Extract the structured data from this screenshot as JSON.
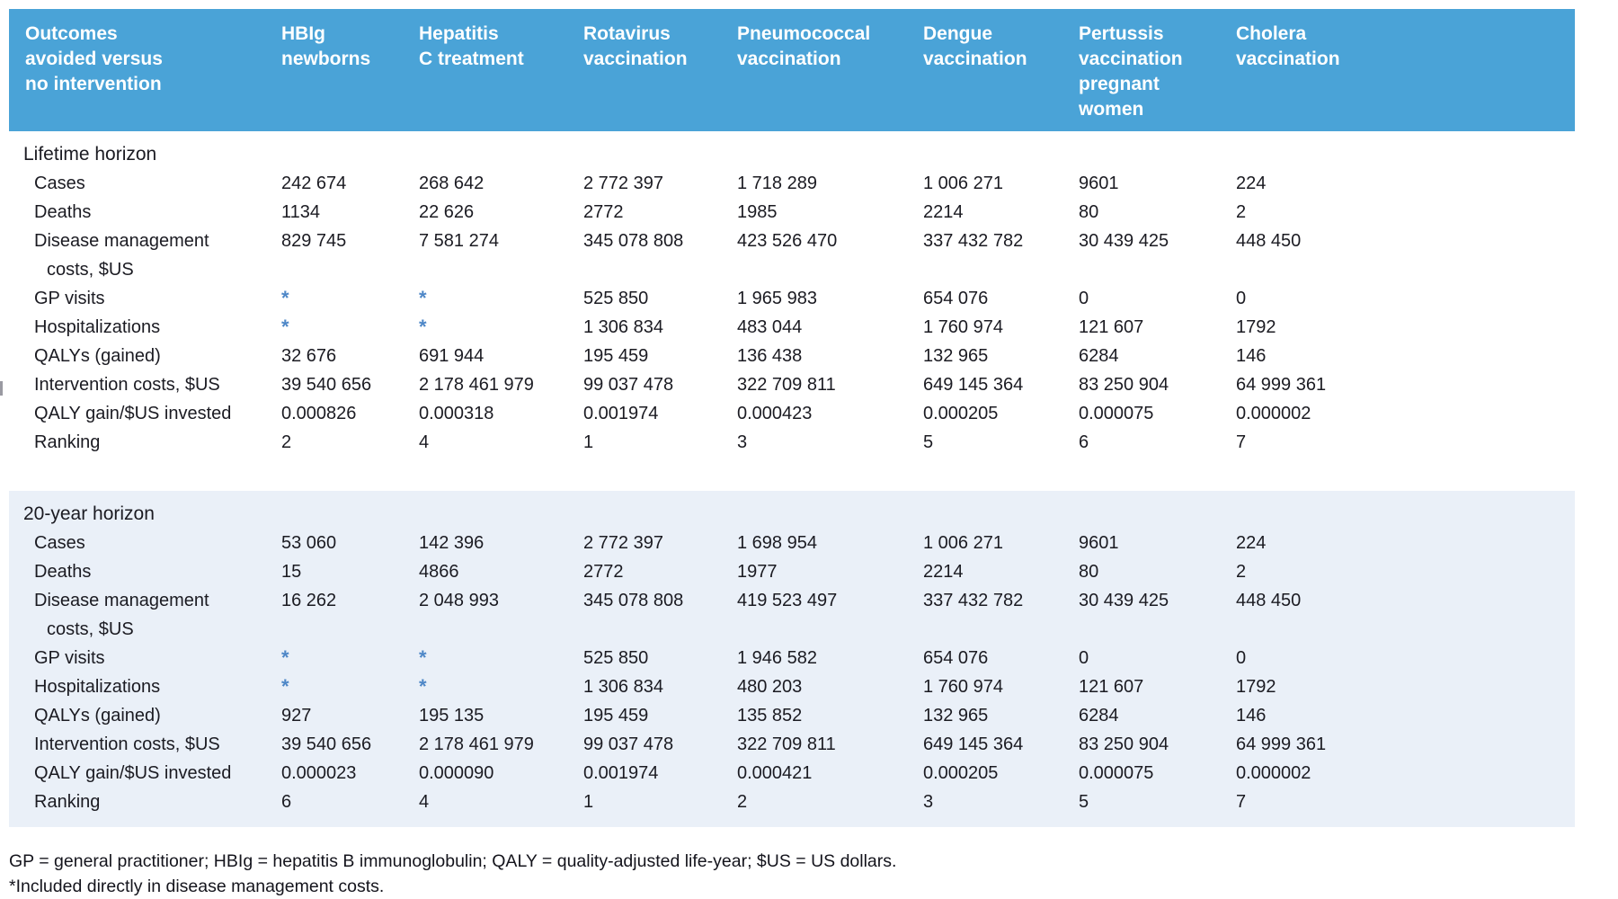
{
  "table": {
    "header": {
      "row_label_lines": [
        "Outcomes",
        "avoided versus",
        "no intervention"
      ],
      "columns": [
        {
          "name": "hbig-newborns",
          "lines": [
            "HBIg",
            "newborns"
          ]
        },
        {
          "name": "hepatitis-c-treatment",
          "lines": [
            "Hepatitis",
            "C treatment"
          ]
        },
        {
          "name": "rotavirus-vaccination",
          "lines": [
            "Rotavirus",
            "vaccination"
          ]
        },
        {
          "name": "pneumococcal-vaccination",
          "lines": [
            "Pneumococcal",
            "vaccination"
          ]
        },
        {
          "name": "dengue-vaccination",
          "lines": [
            "Dengue",
            "vaccination"
          ]
        },
        {
          "name": "pertussis-vaccination-pregnant-women",
          "lines": [
            "Pertussis",
            "vaccination",
            "pregnant",
            "women"
          ]
        },
        {
          "name": "cholera-vaccination",
          "lines": [
            "Cholera",
            "vaccination"
          ]
        }
      ]
    },
    "sections": [
      {
        "title": "Lifetime horizon",
        "style": "plain",
        "rows": [
          {
            "label_lines": [
              "Cases"
            ],
            "values": [
              "242 674",
              "268 642",
              "2 772 397",
              "1 718 289",
              "1 006 271",
              "9601",
              "224"
            ]
          },
          {
            "label_lines": [
              "Deaths"
            ],
            "values": [
              "1134",
              "22 626",
              "2772",
              "1985",
              "2214",
              "80",
              "2"
            ]
          },
          {
            "label_lines": [
              "Disease management",
              "costs, $US"
            ],
            "values": [
              "829 745",
              "7 581 274",
              "345 078 808",
              "423 526 470",
              "337 432 782",
              "30 439 425",
              "448 450"
            ]
          },
          {
            "label_lines": [
              "GP visits"
            ],
            "values": [
              "*",
              "*",
              "525 850",
              "1 965 983",
              "654 076",
              "0",
              "0"
            ]
          },
          {
            "label_lines": [
              "Hospitalizations"
            ],
            "values": [
              "*",
              "*",
              "1 306 834",
              "483 044",
              "1 760 974",
              "121 607",
              "1792"
            ]
          },
          {
            "label_lines": [
              "QALYs (gained)"
            ],
            "values": [
              "32 676",
              "691 944",
              "195 459",
              "136 438",
              "132 965",
              "6284",
              "146"
            ]
          },
          {
            "label_lines": [
              "Intervention costs, $US"
            ],
            "values": [
              "39 540 656",
              "2 178 461 979",
              "99 037 478",
              "322 709 811",
              "649 145 364",
              "83 250 904",
              "64 999 361"
            ]
          },
          {
            "label_lines": [
              "QALY gain/$US invested"
            ],
            "values": [
              "0.000826",
              "0.000318",
              "0.001974",
              "0.000423",
              "0.000205",
              "0.000075",
              "0.000002"
            ]
          },
          {
            "label_lines": [
              "Ranking"
            ],
            "values": [
              "2",
              "4",
              "1",
              "3",
              "5",
              "6",
              "7"
            ]
          }
        ]
      },
      {
        "title": "20-year horizon",
        "style": "alt",
        "rows": [
          {
            "label_lines": [
              "Cases"
            ],
            "values": [
              "53 060",
              "142 396",
              "2 772 397",
              "1 698 954",
              "1 006 271",
              "9601",
              "224"
            ]
          },
          {
            "label_lines": [
              "Deaths"
            ],
            "values": [
              "15",
              "4866",
              "2772",
              "1977",
              "2214",
              "80",
              "2"
            ]
          },
          {
            "label_lines": [
              "Disease management",
              "costs, $US"
            ],
            "values": [
              "16 262",
              "2 048 993",
              "345 078 808",
              "419 523 497",
              "337 432 782",
              "30 439 425",
              "448 450"
            ]
          },
          {
            "label_lines": [
              "GP visits"
            ],
            "values": [
              "*",
              "*",
              "525 850",
              "1 946 582",
              "654 076",
              "0",
              "0"
            ]
          },
          {
            "label_lines": [
              "Hospitalizations"
            ],
            "values": [
              "*",
              "*",
              "1 306 834",
              "480 203",
              "1 760 974",
              "121 607",
              "1792"
            ]
          },
          {
            "label_lines": [
              "QALYs (gained)"
            ],
            "values": [
              "927",
              "195 135",
              "195 459",
              "135 852",
              "132 965",
              "6284",
              "146"
            ]
          },
          {
            "label_lines": [
              "Intervention costs, $US"
            ],
            "values": [
              "39 540 656",
              "2 178 461 979",
              "99 037 478",
              "322 709 811",
              "649 145 364",
              "83 250 904",
              "64 999 361"
            ]
          },
          {
            "label_lines": [
              "QALY gain/$US invested"
            ],
            "values": [
              "0.000023",
              "0.000090",
              "0.001974",
              "0.000421",
              "0.000205",
              "0.000075",
              "0.000002"
            ]
          },
          {
            "label_lines": [
              "Ranking"
            ],
            "values": [
              "6",
              "4",
              "1",
              "2",
              "3",
              "5",
              "7"
            ]
          }
        ]
      }
    ],
    "footnotes": [
      "GP = general practitioner; HBIg = hepatitis B immunoglobulin; QALY = quality-adjusted life-year; $US = US dollars.",
      "*Included directly in disease management costs."
    ],
    "colors": {
      "header_bg": "#4aa3d7",
      "header_text": "#ffffff",
      "alt_section_bg": "#eaf0f8",
      "asterisk": "#4e87c7",
      "body_text": "#1b1b22"
    }
  }
}
